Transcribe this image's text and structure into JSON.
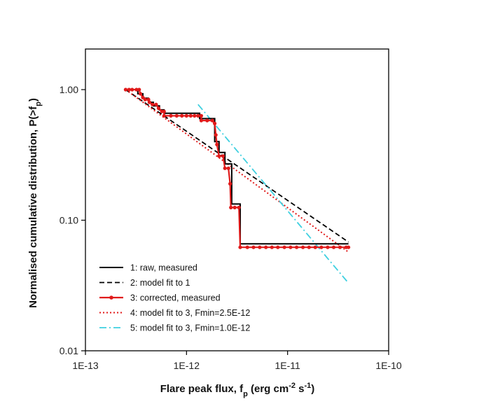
{
  "chart_data": {
    "type": "line",
    "xscale": "log",
    "yscale": "log",
    "xlim": [
      1e-13,
      1e-10
    ],
    "ylim": [
      0.01,
      2.2
    ],
    "x_ticks": [
      1e-13,
      1e-12,
      1e-11,
      1e-10
    ],
    "x_tick_labels": [
      "1E-13",
      "1E-12",
      "1E-11",
      "1E-10"
    ],
    "y_ticks": [
      1.0,
      0.1,
      0.01
    ],
    "y_tick_labels": [
      "1.00",
      "0.10",
      "0.01"
    ],
    "xlabel_parts": [
      "Flare peak flux, f",
      "p",
      " (erg cm",
      "-2",
      " s",
      "-1",
      ")"
    ],
    "ylabel_parts": [
      "Normalised cumulative distribution, P(>f",
      "p",
      ")"
    ],
    "legend_position": "bottom-left",
    "series": [
      {
        "name": "1: raw, measured",
        "style": "solid",
        "color": "#000000",
        "points": [
          [
            2.5e-13,
            1.0
          ],
          [
            3.3e-13,
            1.0
          ],
          [
            3.3e-13,
            0.93
          ],
          [
            3.7e-13,
            0.93
          ],
          [
            3.7e-13,
            0.86
          ],
          [
            4.2e-13,
            0.86
          ],
          [
            4.2e-13,
            0.8
          ],
          [
            4.7e-13,
            0.8
          ],
          [
            4.7e-13,
            0.75
          ],
          [
            5.4e-13,
            0.75
          ],
          [
            5.4e-13,
            0.7
          ],
          [
            6e-13,
            0.7
          ],
          [
            6e-13,
            0.66
          ],
          [
            1.35e-12,
            0.66
          ],
          [
            1.35e-12,
            0.6
          ],
          [
            1.9e-12,
            0.6
          ],
          [
            1.9e-12,
            0.4
          ],
          [
            2.1e-12,
            0.4
          ],
          [
            2.1e-12,
            0.33
          ],
          [
            2.4e-12,
            0.33
          ],
          [
            2.4e-12,
            0.27
          ],
          [
            2.8e-12,
            0.27
          ],
          [
            2.8e-12,
            0.133
          ],
          [
            3.4e-12,
            0.133
          ],
          [
            3.4e-12,
            0.066
          ],
          [
            4e-11,
            0.066
          ]
        ]
      },
      {
        "name": "2: model fit to 1",
        "style": "dashed",
        "color": "#000000",
        "points": [
          [
            2.5e-13,
            1.0
          ],
          [
            4e-11,
            0.068
          ]
        ]
      },
      {
        "name": "3: corrected, measured",
        "style": "solid-markers",
        "color": "#e01a1a",
        "points": [
          [
            2.5e-13,
            1.0
          ],
          [
            2.7e-13,
            1.0
          ],
          [
            2.9e-13,
            1.0
          ],
          [
            3.2e-13,
            1.0
          ],
          [
            3.4e-13,
            1.0
          ],
          [
            3.5e-13,
            0.93
          ],
          [
            3.7e-13,
            0.87
          ],
          [
            3.9e-13,
            0.84
          ],
          [
            4.2e-13,
            0.84
          ],
          [
            4.3e-13,
            0.8
          ],
          [
            4.6e-13,
            0.77
          ],
          [
            5e-13,
            0.77
          ],
          [
            5.3e-13,
            0.72
          ],
          [
            5.7e-13,
            0.68
          ],
          [
            6e-13,
            0.68
          ],
          [
            6e-13,
            0.63
          ],
          [
            7e-13,
            0.63
          ],
          [
            8e-13,
            0.63
          ],
          [
            9e-13,
            0.63
          ],
          [
            1e-12,
            0.63
          ],
          [
            1.1e-12,
            0.63
          ],
          [
            1.2e-12,
            0.63
          ],
          [
            1.3e-12,
            0.63
          ],
          [
            1.4e-12,
            0.63
          ],
          [
            1.4e-12,
            0.58
          ],
          [
            1.6e-12,
            0.58
          ],
          [
            1.8e-12,
            0.58
          ],
          [
            1.9e-12,
            0.55
          ],
          [
            1.95e-12,
            0.45
          ],
          [
            2e-12,
            0.38
          ],
          [
            2.1e-12,
            0.31
          ],
          [
            2.3e-12,
            0.31
          ],
          [
            2.4e-12,
            0.25
          ],
          [
            2.6e-12,
            0.25
          ],
          [
            2.7e-12,
            0.19
          ],
          [
            2.75e-12,
            0.125
          ],
          [
            3e-12,
            0.125
          ],
          [
            3.3e-12,
            0.125
          ],
          [
            3.4e-12,
            0.062
          ],
          [
            4e-12,
            0.062
          ],
          [
            4.6e-12,
            0.062
          ],
          [
            5.3e-12,
            0.062
          ],
          [
            6.1e-12,
            0.062
          ],
          [
            7e-12,
            0.062
          ],
          [
            8e-12,
            0.062
          ],
          [
            9.3e-12,
            0.062
          ],
          [
            1.07e-11,
            0.062
          ],
          [
            1.23e-11,
            0.062
          ],
          [
            1.42e-11,
            0.062
          ],
          [
            1.63e-11,
            0.062
          ],
          [
            1.88e-11,
            0.062
          ],
          [
            2.16e-11,
            0.062
          ],
          [
            2.49e-11,
            0.062
          ],
          [
            2.86e-11,
            0.062
          ],
          [
            3.3e-11,
            0.062
          ],
          [
            3.8e-11,
            0.062
          ],
          [
            4e-11,
            0.062
          ]
        ]
      },
      {
        "name": "4: model fit to 3, Fmin=2.5E-12",
        "style": "dotted",
        "color": "#e01a1a",
        "points": [
          [
            2.5e-13,
            1.0
          ],
          [
            4e-11,
            0.057
          ]
        ]
      },
      {
        "name": "5: model fit to 3, Fmin=1.0E-12",
        "style": "dash-dot",
        "color": "#3fd0e0",
        "points": [
          [
            1.3e-12,
            0.77
          ],
          [
            4e-11,
            0.033
          ]
        ]
      }
    ]
  }
}
